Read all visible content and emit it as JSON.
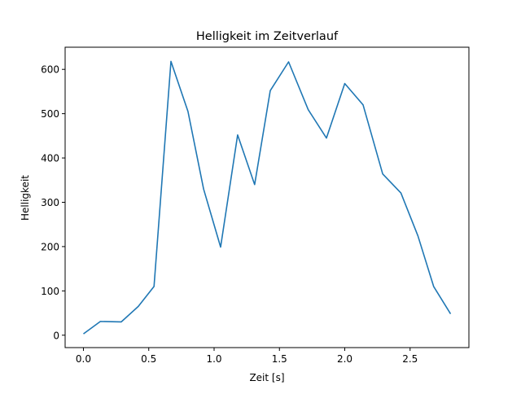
{
  "chart_data": {
    "type": "line",
    "title": "Helligkeit im Zeitverlauf",
    "xlabel": "Zeit [s]",
    "ylabel": "Helligkeit",
    "xlim": [
      -0.14,
      2.95
    ],
    "ylim": [
      -28,
      650
    ],
    "xticks": [
      0.0,
      0.5,
      1.0,
      1.5,
      2.0,
      2.5
    ],
    "xtick_labels": [
      "0.0",
      "0.5",
      "1.0",
      "1.5",
      "2.0",
      "2.5"
    ],
    "yticks": [
      0,
      100,
      200,
      300,
      400,
      500,
      600
    ],
    "ytick_labels": [
      "0",
      "100",
      "200",
      "300",
      "400",
      "500",
      "600"
    ],
    "grid": false,
    "series": [
      {
        "name": "Helligkeit",
        "color": "#1f77b4",
        "x": [
          0.0,
          0.13,
          0.29,
          0.42,
          0.54,
          0.67,
          0.8,
          0.92,
          1.05,
          1.18,
          1.31,
          1.43,
          1.57,
          1.72,
          1.86,
          2.0,
          2.14,
          2.29,
          2.43,
          2.56,
          2.68,
          2.81
        ],
        "y": [
          3,
          31,
          30,
          65,
          110,
          618,
          505,
          330,
          199,
          452,
          340,
          552,
          617,
          509,
          445,
          568,
          520,
          364,
          321,
          224,
          110,
          48
        ]
      }
    ]
  }
}
